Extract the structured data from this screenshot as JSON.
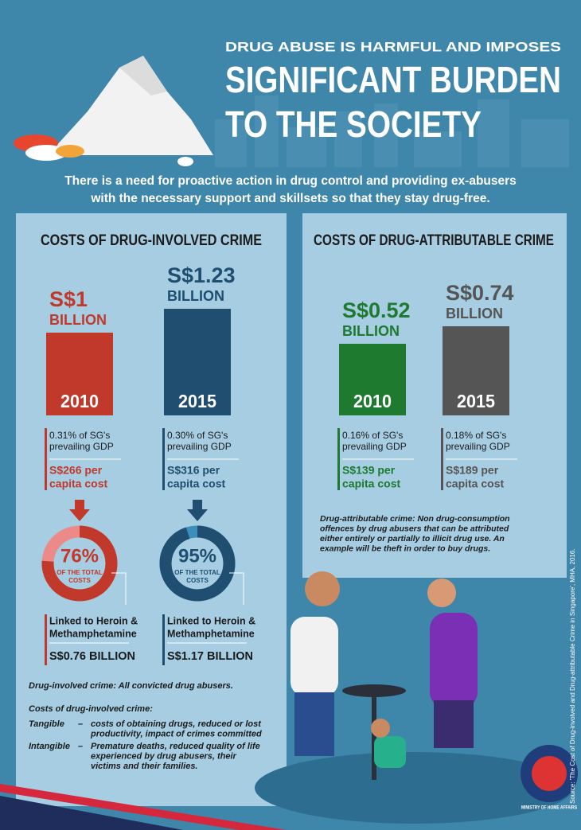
{
  "header": {
    "kicker": "DRUG ABUSE IS HARMFUL AND IMPOSES",
    "title_lines": [
      "SIGNIFICANT BURDEN",
      "TO THE SOCIETY"
    ],
    "subtitle_lines": [
      "There is a need for proactive action in drug control and providing ex-abusers",
      "with the necessary support and skillsets so that they stay drug-free."
    ]
  },
  "involved": {
    "heading": "COSTS OF DRUG-INVOLVED CRIME",
    "years": [
      {
        "amount": "S$1",
        "unit": "BILLION",
        "year": "2010",
        "gdp_lines": [
          "0.31% of SG's",
          "prevailing GDP"
        ],
        "capita_lines": [
          "S$266 per",
          "capita cost"
        ],
        "share": {
          "value": 76,
          "label": "76%"
        },
        "share_caption_lines": [
          "OF THE TOTAL",
          "COSTS"
        ],
        "linked_lines": [
          "Linked to Heroin &",
          "Methamphetamine"
        ],
        "linked_amount": "S$0.76 BILLION"
      },
      {
        "amount": "S$1.23",
        "unit": "BILLION",
        "year": "2015",
        "gdp_lines": [
          "0.30% of SG's",
          "prevailing GDP"
        ],
        "capita_lines": [
          "S$316 per",
          "capita cost"
        ],
        "share": {
          "value": 95,
          "label": "95%"
        },
        "share_caption_lines": [
          "OF THE TOTAL",
          "COSTS"
        ],
        "linked_lines": [
          "Linked to Heroin &",
          "Methamphetamine"
        ],
        "linked_amount": "S$1.17 BILLION"
      }
    ],
    "definition": "Drug-involved crime: All convicted drug abusers.",
    "costs_heading": "Costs of drug-involved crime:",
    "costs": [
      {
        "term": "Tangible",
        "dash": "–",
        "lines": [
          "costs of obtaining drugs, reduced or lost",
          "productivity, impact of crimes committed"
        ]
      },
      {
        "term": "Intangible",
        "dash": "–",
        "lines": [
          "Premature deaths, reduced quality of life",
          "experienced by drug abusers, their",
          "victims and their families."
        ]
      }
    ]
  },
  "attributable": {
    "heading": "COSTS OF DRUG-ATTRIBUTABLE CRIME",
    "years": [
      {
        "amount": "S$0.52",
        "unit": "BILLION",
        "year": "2010",
        "gdp_lines": [
          "0.16% of SG's",
          "prevailing GDP"
        ],
        "capita_lines": [
          "S$139 per",
          "capita cost"
        ]
      },
      {
        "amount": "S$0.74",
        "unit": "BILLION",
        "year": "2015",
        "gdp_lines": [
          "0.18% of SG's",
          "prevailing GDP"
        ],
        "capita_lines": [
          "S$189 per",
          "capita cost"
        ]
      }
    ],
    "definition_lines": [
      "Drug-attributable crime: Non drug-consumption",
      "offences by drug abusers that can be attributed",
      "either entirely or partially to illicit drug use. An",
      "example will be theft in order to buy drugs."
    ]
  },
  "source": "Source: 'The Cost of Drug-involved and Drug-attributable Crime in Singapore', MHA, 2016.",
  "logo_text": "MINISTRY OF HOME AFFAIRS"
}
